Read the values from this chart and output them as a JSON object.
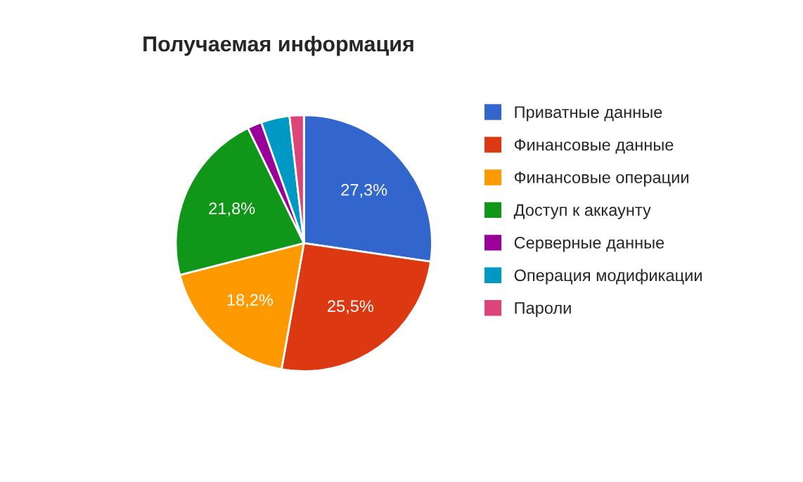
{
  "chart_data": {
    "type": "pie",
    "title": "Получаемая информация",
    "categories": [
      "Приватные данные",
      "Финансовые данные",
      "Финансовые операции",
      "Доступ к аккаунту",
      "Серверные данные",
      "Операция модификации",
      "Пароли"
    ],
    "values": [
      27.3,
      25.5,
      18.2,
      21.8,
      1.8,
      3.6,
      1.8
    ],
    "value_labels": [
      "27,3%",
      "25,5%",
      "18,2%",
      "21,8%",
      null,
      null,
      null
    ],
    "colors": [
      "#3366cc",
      "#dc3912",
      "#ff9900",
      "#109618",
      "#990099",
      "#0099c6",
      "#dd4477"
    ],
    "legend": "right"
  }
}
